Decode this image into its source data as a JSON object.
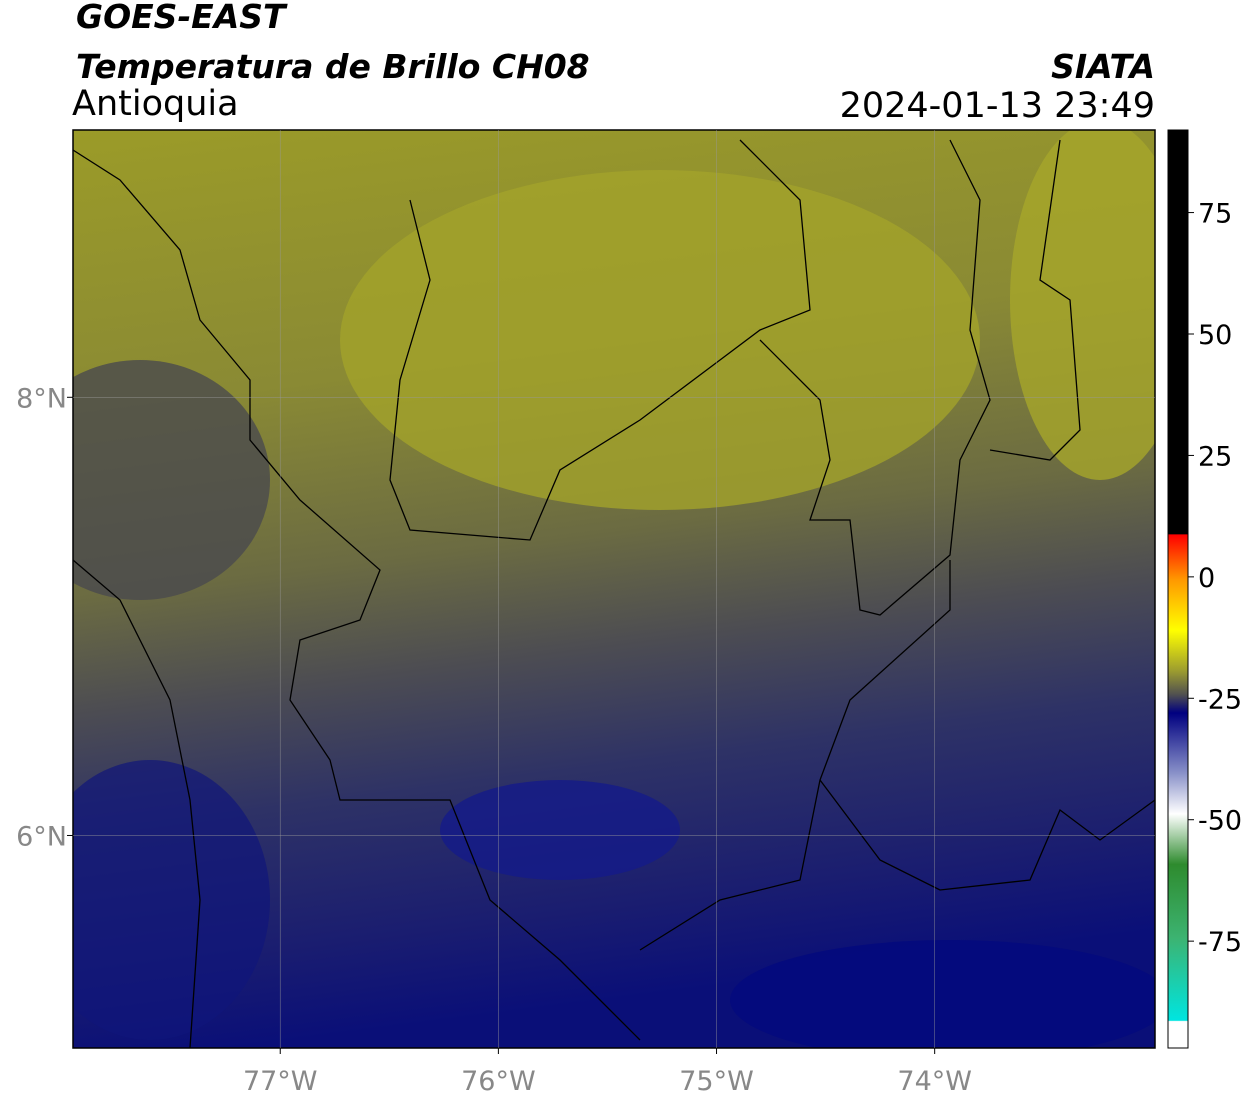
{
  "header": {
    "title": "GOES-EAST",
    "subtitle": "Temperatura de Brillo CH08",
    "region": "Antioquia",
    "source": "SIATA",
    "timestamp": "2024-01-13 23:49"
  },
  "map": {
    "xlim": [
      -77.95,
      -72.99
    ],
    "ylim": [
      5.03,
      9.22
    ],
    "xticks": [
      {
        "value": -77,
        "label": "77°W"
      },
      {
        "value": -76,
        "label": "76°W"
      },
      {
        "value": -75,
        "label": "75°W"
      },
      {
        "value": -74,
        "label": "74°W"
      }
    ],
    "yticks": [
      {
        "value": 8,
        "label": "8°N"
      },
      {
        "value": 6,
        "label": "6°N"
      }
    ],
    "grid": true
  },
  "colorbar": {
    "range": [
      -97,
      92
    ],
    "ticks": [
      75,
      50,
      25,
      0,
      -25,
      -50,
      -75
    ]
  }
}
